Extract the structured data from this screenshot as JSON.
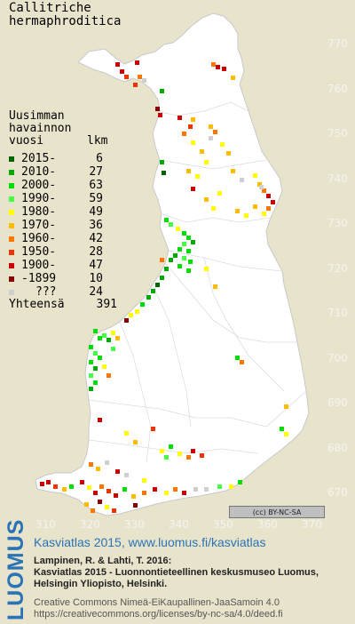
{
  "species": {
    "line1": "Callitriche",
    "line2": "hermaphroditica"
  },
  "legend": {
    "header1": "Uusimman",
    "header2": "havainnon",
    "header3": "vuosi",
    "header_count": "lkm",
    "rows": [
      {
        "label": "2015-",
        "count": "6",
        "color": "#006400"
      },
      {
        "label": "2010-",
        "count": "27",
        "color": "#00aa00"
      },
      {
        "label": "2000-",
        "count": "63",
        "color": "#00dd00"
      },
      {
        "label": "1990-",
        "count": "59",
        "color": "#44ff44"
      },
      {
        "label": "1980-",
        "count": "49",
        "color": "#ffff00"
      },
      {
        "label": "1970-",
        "count": "36",
        "color": "#ffbb00"
      },
      {
        "label": "1960-",
        "count": "42",
        "color": "#ff7700"
      },
      {
        "label": "1950-",
        "count": "28",
        "color": "#ee3300"
      },
      {
        "label": "1900-",
        "count": "47",
        "color": "#cc0000"
      },
      {
        "label": "-1899",
        "count": "10",
        "color": "#880000"
      },
      {
        "label": "???",
        "count": "24",
        "color": "#cfcfcf"
      }
    ],
    "total_label": "Yhteensä",
    "total_count": "391"
  },
  "axes": {
    "x_ticks": [
      "310",
      "320",
      "330",
      "340",
      "350",
      "360",
      "370"
    ],
    "y_ticks": [
      "770",
      "760",
      "750",
      "740",
      "730",
      "720",
      "710",
      "700",
      "690",
      "680",
      "670"
    ]
  },
  "license_badge": "(cc) BY-NC-SA",
  "footer": {
    "logo": "LUOMUS",
    "title": "Kasviatlas 2015, www.luomus.fi/kasviatlas",
    "citation1": "Lampinen, R. & Lahti, T. 2016:",
    "citation2": "Kasviatlas 2015 - Luonnontieteellinen keskusmuseo Luomus,",
    "citation3": "Helsingin Yliopisto, Helsinki.",
    "license1": "Creative Commons Nimeä-EiKaupallinen-JaaSamoin 4.0",
    "license2": "https://creativecommons.org/licenses/by-nc-sa/4.0/deed.fi"
  }
}
